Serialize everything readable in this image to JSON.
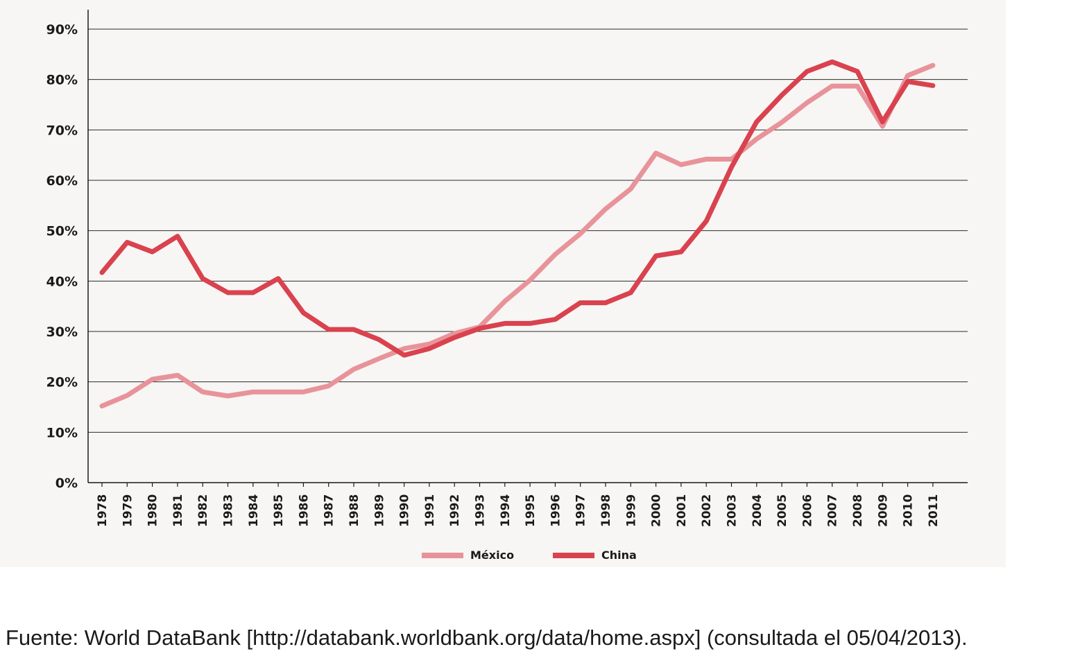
{
  "chart_data": {
    "type": "line",
    "x": [
      "1978",
      "1979",
      "1980",
      "1981",
      "1982",
      "1983",
      "1984",
      "1985",
      "1986",
      "1987",
      "1988",
      "1989",
      "1990",
      "1991",
      "1992",
      "1993",
      "1994",
      "1995",
      "1996",
      "1997",
      "1998",
      "1999",
      "2000",
      "2001",
      "2002",
      "2003",
      "2004",
      "2005",
      "2006",
      "2007",
      "2008",
      "2009",
      "2010",
      "2011"
    ],
    "series": [
      {
        "name": "México",
        "color": "#e8939a",
        "values": [
          15.2,
          17.3,
          20.5,
          21.3,
          18.0,
          17.2,
          18.0,
          18.0,
          18.0,
          19.2,
          22.5,
          24.6,
          26.6,
          27.5,
          29.6,
          30.9,
          36.0,
          40.2,
          45.3,
          49.4,
          54.3,
          58.3,
          65.4,
          63.1,
          64.2,
          64.2,
          68.2,
          71.5,
          75.4,
          78.7,
          78.7,
          70.7,
          80.8,
          82.8
        ]
      },
      {
        "name": "China",
        "color": "#d9424e",
        "values": [
          41.7,
          47.7,
          45.8,
          48.9,
          40.5,
          37.7,
          37.7,
          40.5,
          33.7,
          30.4,
          30.4,
          28.4,
          25.3,
          26.6,
          28.8,
          30.6,
          31.6,
          31.6,
          32.4,
          35.7,
          35.7,
          37.7,
          45.0,
          45.8,
          51.9,
          62.6,
          71.6,
          76.9,
          81.6,
          83.5,
          81.6,
          71.6,
          79.6,
          78.8
        ]
      }
    ],
    "ylim": [
      0,
      90
    ],
    "yticks": [
      0,
      10,
      20,
      30,
      40,
      50,
      60,
      70,
      80,
      90
    ],
    "ytick_labels": [
      "0%",
      "10%",
      "20%",
      "30%",
      "40%",
      "50%",
      "60%",
      "70%",
      "80%",
      "90%"
    ],
    "grid": "horizontal",
    "legend_position": "bottom-center",
    "title": "",
    "xlabel": "",
    "ylabel": ""
  },
  "legend": {
    "mexico_label": "México",
    "china_label": "China"
  },
  "source_note": "Fuente: World DataBank [http://databank.worldbank.org/data/home.aspx] (consultada el 05/04/2013)."
}
